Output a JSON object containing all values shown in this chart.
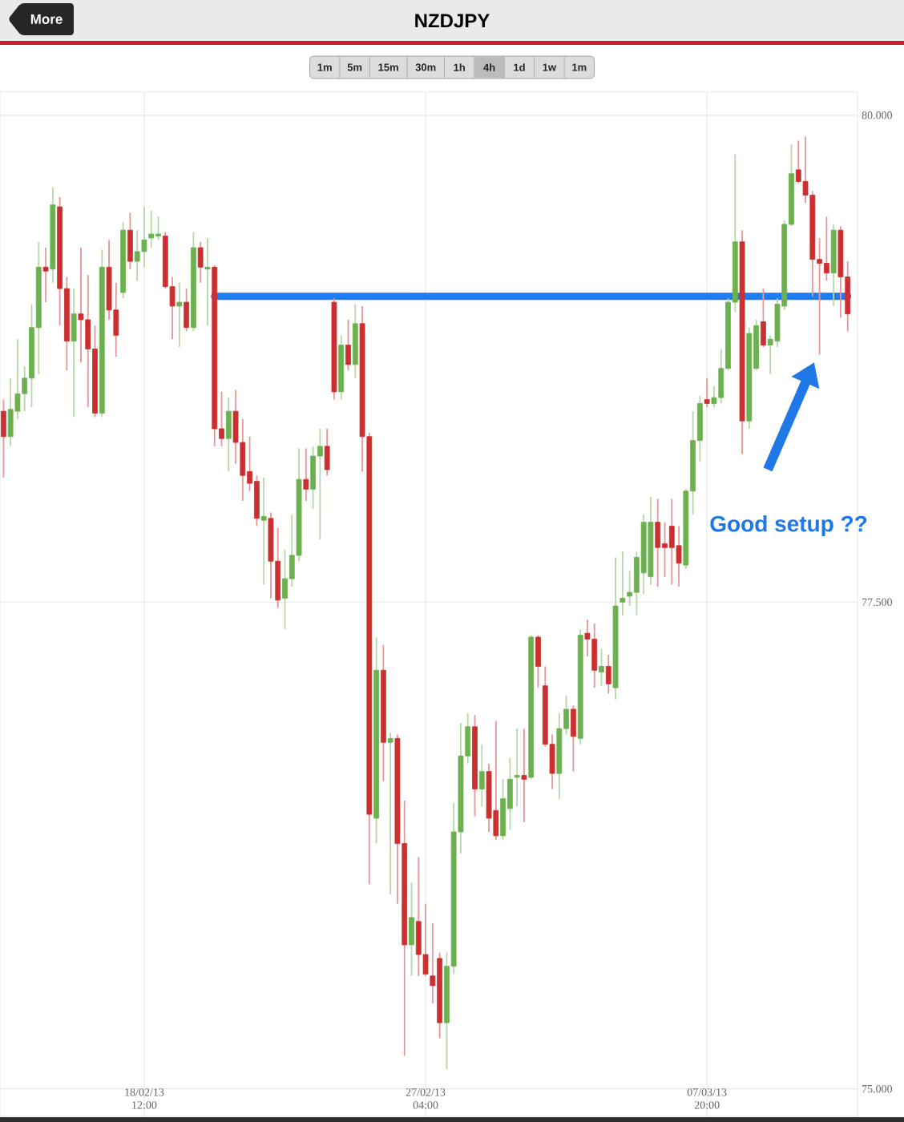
{
  "chart_data": {
    "type": "candlestick",
    "title": "NZDJPY",
    "annotations": [
      "More",
      "1m",
      "5m",
      "15m",
      "30m",
      "1h",
      "4h",
      "1d",
      "1w",
      "1m",
      "Good setup ??"
    ],
    "categories": [
      null,
      null,
      null,
      null,
      null,
      null,
      null,
      null,
      null,
      null,
      null,
      null,
      null,
      null,
      null,
      null,
      null,
      null,
      null,
      null,
      "18/02/13 12:00",
      null,
      null,
      null,
      null,
      null,
      null,
      null,
      null,
      null,
      null,
      null,
      null,
      null,
      null,
      null,
      null,
      null,
      null,
      null,
      null,
      null,
      null,
      null,
      null,
      null,
      null,
      null,
      null,
      null,
      null,
      null,
      null,
      null,
      null,
      null,
      null,
      null,
      null,
      null,
      "27/02/13 04:00",
      null,
      null,
      null,
      null,
      null,
      null,
      null,
      null,
      null,
      null,
      null,
      null,
      null,
      null,
      null,
      null,
      null,
      null,
      null,
      null,
      null,
      null,
      null,
      null,
      null,
      null,
      null,
      null,
      null,
      null,
      null,
      null,
      null,
      null,
      null,
      null,
      null,
      null,
      null,
      "07/03/13 20:00",
      null,
      null,
      null,
      null,
      null,
      null,
      null,
      null,
      null,
      null,
      null,
      null,
      null,
      null,
      null,
      null,
      null,
      null,
      null,
      null
    ],
    "ohlc": [
      [
        78.48,
        78.54,
        78.14,
        78.35
      ],
      [
        78.35,
        78.65,
        78.3,
        78.49
      ],
      [
        78.48,
        78.85,
        78.44,
        78.57
      ],
      [
        78.57,
        78.71,
        78.48,
        78.65
      ],
      [
        78.65,
        79.03,
        78.5,
        78.91
      ],
      [
        78.91,
        79.35,
        78.67,
        79.22
      ],
      [
        79.22,
        79.32,
        79.04,
        79.2
      ],
      [
        79.21,
        79.63,
        79.14,
        79.54
      ],
      [
        79.53,
        79.58,
        78.92,
        79.11
      ],
      [
        79.11,
        79.17,
        78.69,
        78.84
      ],
      [
        78.84,
        79.11,
        78.45,
        78.98
      ],
      [
        78.98,
        79.32,
        78.73,
        78.95
      ],
      [
        78.95,
        79.18,
        78.5,
        78.8
      ],
      [
        78.8,
        78.92,
        78.45,
        78.47
      ],
      [
        78.47,
        79.31,
        78.45,
        79.22
      ],
      [
        79.22,
        79.36,
        78.95,
        79.0
      ],
      [
        79.0,
        79.14,
        78.76,
        78.87
      ],
      [
        79.09,
        79.45,
        79.06,
        79.41
      ],
      [
        79.41,
        79.5,
        79.21,
        79.25
      ],
      [
        79.25,
        79.41,
        79.15,
        79.3
      ],
      [
        79.3,
        79.53,
        79.22,
        79.36
      ],
      [
        79.37,
        79.51,
        79.32,
        79.39
      ],
      [
        79.38,
        79.48,
        79.36,
        79.39
      ],
      [
        79.38,
        79.4,
        79.11,
        79.12
      ],
      [
        79.12,
        79.17,
        78.85,
        79.02
      ],
      [
        79.02,
        79.14,
        78.81,
        79.04
      ],
      [
        79.04,
        79.11,
        78.89,
        78.91
      ],
      [
        78.91,
        79.4,
        78.89,
        79.32
      ],
      [
        79.32,
        79.35,
        79.14,
        79.22
      ],
      [
        79.21,
        79.37,
        78.92,
        79.22
      ],
      [
        79.22,
        79.23,
        78.3,
        78.39
      ],
      [
        78.39,
        78.58,
        78.3,
        78.34
      ],
      [
        78.34,
        78.55,
        78.17,
        78.48
      ],
      [
        78.48,
        78.59,
        78.21,
        78.32
      ],
      [
        78.32,
        78.44,
        78.02,
        78.15
      ],
      [
        78.17,
        78.35,
        78.07,
        78.11
      ],
      [
        78.12,
        78.15,
        77.89,
        77.93
      ],
      [
        77.92,
        78.14,
        77.59,
        77.94
      ],
      [
        77.93,
        77.96,
        77.52,
        77.71
      ],
      [
        77.71,
        77.88,
        77.47,
        77.51
      ],
      [
        77.52,
        77.77,
        77.36,
        77.62
      ],
      [
        77.62,
        77.95,
        77.58,
        77.74
      ],
      [
        77.74,
        78.29,
        77.71,
        78.13
      ],
      [
        78.13,
        78.29,
        78.02,
        78.08
      ],
      [
        78.08,
        78.3,
        77.98,
        78.25
      ],
      [
        78.25,
        78.39,
        77.82,
        78.3
      ],
      [
        78.3,
        78.39,
        78.15,
        78.18
      ],
      [
        79.04,
        79.06,
        78.54,
        78.58
      ],
      [
        78.58,
        78.87,
        78.54,
        78.82
      ],
      [
        78.82,
        78.95,
        78.69,
        78.72
      ],
      [
        78.72,
        79.03,
        78.65,
        78.93
      ],
      [
        78.93,
        79.02,
        78.17,
        78.35
      ],
      [
        78.35,
        78.37,
        76.05,
        76.41
      ],
      [
        76.39,
        77.32,
        76.26,
        77.15
      ],
      [
        77.15,
        77.28,
        76.58,
        76.78
      ],
      [
        76.78,
        76.83,
        76.0,
        76.8
      ],
      [
        76.8,
        76.82,
        75.95,
        76.26
      ],
      [
        76.26,
        76.48,
        75.17,
        75.74
      ],
      [
        75.74,
        76.06,
        75.58,
        75.88
      ],
      [
        75.86,
        76.19,
        75.58,
        75.69
      ],
      [
        75.69,
        75.95,
        75.58,
        75.59
      ],
      [
        75.58,
        75.85,
        75.44,
        75.53
      ],
      [
        75.67,
        75.7,
        75.26,
        75.34
      ],
      [
        75.34,
        75.7,
        75.1,
        75.63
      ],
      [
        75.63,
        76.47,
        75.59,
        76.32
      ],
      [
        76.32,
        76.88,
        76.21,
        76.71
      ],
      [
        76.71,
        76.93,
        76.67,
        76.86
      ],
      [
        76.86,
        76.92,
        76.4,
        76.54
      ],
      [
        76.54,
        76.77,
        76.45,
        76.63
      ],
      [
        76.63,
        76.67,
        76.32,
        76.39
      ],
      [
        76.43,
        76.89,
        76.28,
        76.3
      ],
      [
        76.3,
        76.59,
        76.28,
        76.49
      ],
      [
        76.44,
        76.7,
        76.33,
        76.59
      ],
      [
        76.6,
        76.85,
        76.45,
        76.61
      ],
      [
        76.61,
        76.85,
        76.37,
        76.59
      ],
      [
        76.6,
        77.33,
        76.59,
        77.32
      ],
      [
        77.32,
        77.33,
        77.06,
        77.17
      ],
      [
        77.07,
        77.17,
        76.76,
        76.77
      ],
      [
        76.77,
        76.82,
        76.54,
        76.62
      ],
      [
        76.62,
        76.93,
        76.49,
        76.85
      ],
      [
        76.85,
        77.02,
        76.82,
        76.95
      ],
      [
        76.95,
        76.97,
        76.63,
        76.81
      ],
      [
        76.8,
        77.36,
        76.77,
        77.33
      ],
      [
        77.34,
        77.41,
        77.22,
        77.31
      ],
      [
        77.31,
        77.39,
        77.06,
        77.15
      ],
      [
        77.14,
        77.26,
        77.07,
        77.17
      ],
      [
        77.17,
        77.23,
        77.03,
        77.08
      ],
      [
        77.06,
        77.73,
        77.0,
        77.48
      ],
      [
        77.5,
        77.76,
        77.43,
        77.52
      ],
      [
        77.53,
        77.66,
        77.48,
        77.55
      ],
      [
        77.55,
        77.76,
        77.43,
        77.73
      ],
      [
        77.65,
        77.95,
        77.54,
        77.91
      ],
      [
        77.63,
        78.04,
        77.59,
        77.91
      ],
      [
        77.91,
        78.03,
        77.58,
        77.78
      ],
      [
        77.8,
        77.91,
        77.63,
        77.78
      ],
      [
        77.89,
        78.03,
        77.59,
        77.78
      ],
      [
        77.79,
        77.89,
        77.58,
        77.7
      ],
      [
        77.69,
        78.08,
        77.67,
        78.07
      ],
      [
        78.07,
        78.48,
        77.95,
        78.33
      ],
      [
        78.33,
        78.56,
        78.22,
        78.52
      ],
      [
        78.54,
        78.65,
        78.5,
        78.52
      ],
      [
        78.52,
        78.61,
        78.5,
        78.55
      ],
      [
        78.55,
        78.8,
        78.52,
        78.7
      ],
      [
        78.7,
        79.06,
        78.69,
        79.04
      ],
      [
        79.04,
        79.8,
        78.99,
        79.35
      ],
      [
        79.35,
        79.41,
        78.26,
        78.43
      ],
      [
        78.43,
        78.91,
        78.39,
        78.88
      ],
      [
        78.7,
        78.95,
        78.69,
        78.92
      ],
      [
        78.94,
        79.11,
        78.81,
        78.82
      ],
      [
        78.82,
        78.87,
        78.67,
        78.85
      ],
      [
        78.84,
        79.06,
        78.81,
        79.03
      ],
      [
        79.02,
        79.46,
        79.0,
        79.44
      ],
      [
        79.44,
        79.85,
        79.43,
        79.7
      ],
      [
        79.72,
        79.87,
        79.65,
        79.66
      ],
      [
        79.66,
        79.89,
        79.55,
        79.59
      ],
      [
        79.59,
        79.61,
        79.07,
        79.26
      ],
      [
        79.26,
        79.37,
        78.77,
        79.24
      ],
      [
        79.24,
        79.48,
        79.15,
        79.19
      ],
      [
        79.19,
        79.44,
        79.02,
        79.41
      ],
      [
        79.41,
        79.43,
        78.96,
        79.17
      ],
      [
        79.17,
        79.25,
        78.89,
        78.98
      ]
    ],
    "colors": [
      "#cc2f2f",
      "#6cb04f",
      "#6cb04f",
      "#6cb04f",
      "#6cb04f",
      "#6cb04f",
      "#cc2f2f",
      "#6cb04f",
      "#cc2f2f",
      "#cc2f2f",
      "#6cb04f",
      "#cc2f2f",
      "#cc2f2f",
      "#cc2f2f",
      "#6cb04f",
      "#cc2f2f",
      "#cc2f2f",
      "#6cb04f",
      "#cc2f2f",
      "#6cb04f",
      "#6cb04f",
      "#6cb04f",
      "#6cb04f",
      "#cc2f2f",
      "#cc2f2f",
      "#6cb04f",
      "#cc2f2f",
      "#6cb04f",
      "#cc2f2f",
      "#6cb04f",
      "#cc2f2f",
      "#cc2f2f",
      "#6cb04f",
      "#cc2f2f",
      "#cc2f2f",
      "#cc2f2f",
      "#cc2f2f",
      "#6cb04f",
      "#cc2f2f",
      "#cc2f2f",
      "#6cb04f",
      "#6cb04f",
      "#6cb04f",
      "#cc2f2f",
      "#6cb04f",
      "#6cb04f",
      "#cc2f2f",
      "#cc2f2f",
      "#6cb04f",
      "#cc2f2f",
      "#6cb04f",
      "#cc2f2f",
      "#cc2f2f",
      "#6cb04f",
      "#cc2f2f",
      "#6cb04f",
      "#cc2f2f",
      "#cc2f2f",
      "#6cb04f",
      "#cc2f2f",
      "#cc2f2f",
      "#cc2f2f",
      "#cc2f2f",
      "#6cb04f",
      "#6cb04f",
      "#6cb04f",
      "#6cb04f",
      "#cc2f2f",
      "#6cb04f",
      "#cc2f2f",
      "#cc2f2f",
      "#6cb04f",
      "#6cb04f",
      "#6cb04f",
      "#cc2f2f",
      "#6cb04f",
      "#cc2f2f",
      "#cc2f2f",
      "#cc2f2f",
      "#6cb04f",
      "#6cb04f",
      "#cc2f2f",
      "#6cb04f",
      "#cc2f2f",
      "#cc2f2f",
      "#6cb04f",
      "#cc2f2f",
      "#6cb04f",
      "#6cb04f",
      "#6cb04f",
      "#6cb04f",
      "#6cb04f",
      "#6cb04f",
      "#cc2f2f",
      "#cc2f2f",
      "#cc2f2f",
      "#cc2f2f",
      "#6cb04f",
      "#6cb04f",
      "#6cb04f",
      "#cc2f2f",
      "#6cb04f",
      "#6cb04f",
      "#6cb04f",
      "#6cb04f",
      "#cc2f2f",
      "#6cb04f",
      "#6cb04f",
      "#cc2f2f",
      "#6cb04f",
      "#6cb04f",
      "#6cb04f",
      "#6cb04f",
      "#cc2f2f",
      "#cc2f2f",
      "#cc2f2f",
      "#cc2f2f",
      "#cc2f2f",
      "#6cb04f",
      "#cc2f2f",
      "#cc2f2f"
    ],
    "series": [
      {
        "type": "line",
        "color": "#1f7cf0",
        "values": [
          null,
          null,
          null,
          null,
          null,
          null,
          null,
          null,
          null,
          null,
          null,
          null,
          null,
          null,
          null,
          null,
          null,
          null,
          null,
          null,
          null,
          null,
          null,
          null,
          null,
          null,
          null,
          null,
          null,
          null,
          79.07,
          79.07,
          79.07,
          79.07,
          79.07,
          79.07,
          79.07,
          79.07,
          79.07,
          79.07,
          79.07,
          79.07,
          79.07,
          79.07,
          79.07,
          79.07,
          79.07,
          79.07,
          79.07,
          79.07,
          79.07,
          79.07,
          79.07,
          79.07,
          79.07,
          79.07,
          79.07,
          79.07,
          79.07,
          79.07,
          79.07,
          79.07,
          79.07,
          79.07,
          79.07,
          79.07,
          79.07,
          79.07,
          79.07,
          79.07,
          79.07,
          79.07,
          79.07,
          79.07,
          79.07,
          79.07,
          79.07,
          79.07,
          79.07,
          79.07,
          79.07,
          79.07,
          79.07,
          79.07,
          79.07,
          79.07,
          79.07,
          79.07,
          79.07,
          79.07,
          79.07,
          79.07,
          79.07,
          79.07,
          79.07,
          79.07,
          79.07,
          79.07,
          79.07,
          79.07,
          79.07,
          79.07,
          79.07,
          79.07,
          79.07,
          79.07,
          79.07,
          79.07,
          79.07,
          79.07,
          79.07,
          79.07,
          79.07,
          79.07,
          79.07,
          79.07,
          79.07,
          79.07,
          79.07,
          79.07,
          79.07
        ]
      }
    ],
    "ylim": [
      74.86,
      80.12
    ],
    "yticks": [
      {
        "value": 75,
        "label": "75.000"
      },
      {
        "value": 77.5,
        "label": "77.500"
      },
      {
        "value": 80,
        "label": "80.000"
      }
    ],
    "grid": true
  }
}
